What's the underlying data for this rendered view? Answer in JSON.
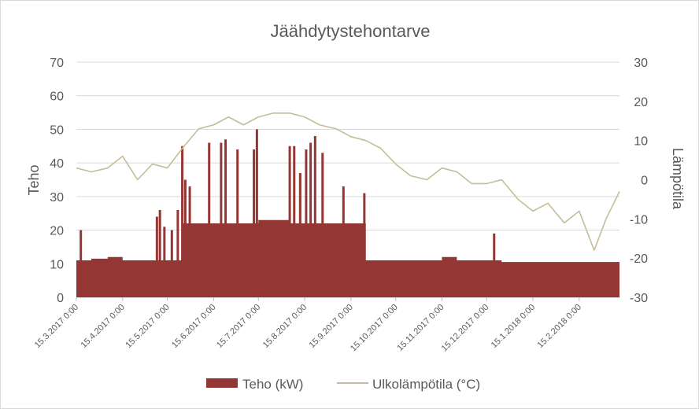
{
  "chart_data": {
    "type": "bar",
    "title": "Jäähdytystehontarve",
    "ylabel": "Teho",
    "y2label": "Lämpötila",
    "ylim": [
      0,
      70
    ],
    "y2lim": [
      -30,
      30
    ],
    "yticks": [
      "0",
      "10",
      "20",
      "30",
      "40",
      "50",
      "60",
      "70"
    ],
    "y2ticks": [
      "-30",
      "-20",
      "-10",
      "0",
      "10",
      "20",
      "30"
    ],
    "x_start": "15.3.2017",
    "x_end": "14.3.2018",
    "x_ticks": [
      "15.3.2017 0:00",
      "15.4.2017 0:00",
      "15.5.2017 0:00",
      "15.6.2017 0:00",
      "15.7.2017 0:00",
      "15.8.2017 0:00",
      "15.9.2017 0:00",
      "15.10.2017 0:00",
      "15.11.2017 0:00",
      "15.12.2017 0:00",
      "15.1.2018 0:00",
      "15.2.2018 0:00"
    ],
    "grid": true,
    "legend_position": "bottom",
    "series": [
      {
        "name": "Teho (kW)",
        "kind": "bar",
        "axis": "left",
        "color": "#943634",
        "points": [
          [
            "15.3.2017",
            11
          ],
          [
            "25.3.2017",
            11.5
          ],
          [
            "5.4.2017",
            12
          ],
          [
            "15.4.2017",
            11
          ],
          [
            "25.4.2017",
            11
          ],
          [
            "5.5.2017",
            11
          ],
          [
            "15.5.2017",
            11
          ],
          [
            "25.5.2017",
            22
          ],
          [
            "5.6.2017",
            22
          ],
          [
            "15.6.2017",
            22
          ],
          [
            "25.6.2017",
            22
          ],
          [
            "5.7.2017",
            22
          ],
          [
            "15.7.2017",
            23
          ],
          [
            "25.7.2017",
            23
          ],
          [
            "5.8.2017",
            22
          ],
          [
            "15.8.2017",
            22
          ],
          [
            "25.8.2017",
            22
          ],
          [
            "5.9.2017",
            22
          ],
          [
            "15.9.2017",
            22
          ],
          [
            "25.9.2017",
            11
          ],
          [
            "5.10.2017",
            11
          ],
          [
            "15.10.2017",
            11
          ],
          [
            "25.10.2017",
            11
          ],
          [
            "5.11.2017",
            11
          ],
          [
            "15.11.2017",
            12
          ],
          [
            "25.11.2017",
            11
          ],
          [
            "5.12.2017",
            11
          ],
          [
            "15.12.2017",
            11
          ],
          [
            "25.12.2017",
            10.5
          ],
          [
            "5.1.2018",
            10.5
          ],
          [
            "15.1.2018",
            10.5
          ],
          [
            "25.1.2018",
            10.5
          ],
          [
            "5.2.2018",
            10.5
          ],
          [
            "15.2.2018",
            10.5
          ],
          [
            "25.2.2018",
            10.5
          ],
          [
            "5.3.2018",
            10.5
          ],
          [
            "14.3.2018",
            10.5
          ]
        ],
        "spikes": [
          [
            "18.3.2017",
            20
          ],
          [
            "8.5.2017",
            24
          ],
          [
            "10.5.2017",
            26
          ],
          [
            "13.5.2017",
            21
          ],
          [
            "18.5.2017",
            20
          ],
          [
            "22.5.2017",
            26
          ],
          [
            "25.5.2017",
            45
          ],
          [
            "27.5.2017",
            35
          ],
          [
            "30.5.2017",
            33
          ],
          [
            "12.6.2017",
            46
          ],
          [
            "20.6.2017",
            46
          ],
          [
            "23.6.2017",
            47
          ],
          [
            "1.7.2017",
            44
          ],
          [
            "12.7.2017",
            44
          ],
          [
            "14.7.2017",
            50
          ],
          [
            "5.8.2017",
            45
          ],
          [
            "8.8.2017",
            45
          ],
          [
            "12.8.2017",
            37
          ],
          [
            "16.8.2017",
            44
          ],
          [
            "19.8.2017",
            46
          ],
          [
            "22.8.2017",
            48
          ],
          [
            "27.8.2017",
            43
          ],
          [
            "10.9.2017",
            33
          ],
          [
            "24.9.2017",
            31
          ],
          [
            "20.12.2017",
            19
          ]
        ]
      },
      {
        "name": "Ulkolämpötila (°C)",
        "kind": "line",
        "axis": "right",
        "color": "#c4bd97",
        "points": [
          [
            "15.3.2017",
            3
          ],
          [
            "25.3.2017",
            2
          ],
          [
            "5.4.2017",
            3
          ],
          [
            "15.4.2017",
            6
          ],
          [
            "25.4.2017",
            0
          ],
          [
            "5.5.2017",
            4
          ],
          [
            "15.5.2017",
            3
          ],
          [
            "25.5.2017",
            8
          ],
          [
            "5.6.2017",
            13
          ],
          [
            "15.6.2017",
            14
          ],
          [
            "25.6.2017",
            16
          ],
          [
            "5.7.2017",
            14
          ],
          [
            "15.7.2017",
            16
          ],
          [
            "25.7.2017",
            17
          ],
          [
            "5.8.2017",
            17
          ],
          [
            "15.8.2017",
            16
          ],
          [
            "25.8.2017",
            14
          ],
          [
            "5.9.2017",
            13
          ],
          [
            "15.9.2017",
            11
          ],
          [
            "25.9.2017",
            10
          ],
          [
            "5.10.2017",
            8
          ],
          [
            "15.10.2017",
            4
          ],
          [
            "25.10.2017",
            1
          ],
          [
            "5.11.2017",
            0
          ],
          [
            "15.11.2017",
            3
          ],
          [
            "25.11.2017",
            2
          ],
          [
            "5.12.2017",
            -1
          ],
          [
            "15.12.2017",
            -1
          ],
          [
            "25.12.2017",
            0
          ],
          [
            "5.1.2018",
            -5
          ],
          [
            "15.1.2018",
            -8
          ],
          [
            "25.1.2018",
            -6
          ],
          [
            "5.2.2018",
            -11
          ],
          [
            "15.2.2018",
            -8
          ],
          [
            "25.2.2018",
            -18
          ],
          [
            "5.3.2018",
            -10
          ],
          [
            "14.3.2018",
            -3
          ]
        ]
      }
    ]
  }
}
